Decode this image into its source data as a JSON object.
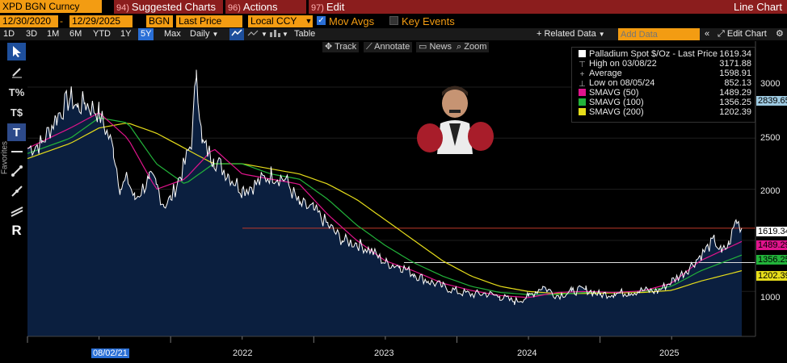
{
  "header": {
    "ticker": "XPD BGN Curncy",
    "menus": [
      {
        "num": "94)",
        "label": "Suggested Charts"
      },
      {
        "num": "96)",
        "label": "Actions"
      },
      {
        "num": "97)",
        "label": "Edit"
      }
    ],
    "chart_type_label": "Line Chart"
  },
  "controls": {
    "start_date": "12/30/2020",
    "end_date": "12/29/2025",
    "source": "BGN",
    "field": "Last Price",
    "currency": "Local CCY",
    "mov_avgs_label": "Mov Avgs",
    "mov_avgs_checked": true,
    "key_events_label": "Key Events",
    "key_events_checked": false
  },
  "periods": [
    "1D",
    "3D",
    "1M",
    "6M",
    "YTD",
    "1Y",
    "5Y",
    "Max"
  ],
  "active_period": "5Y",
  "toolbar": {
    "frequency": "Daily",
    "table_label": "Table",
    "related_data_label": "+ Related Data",
    "add_data_placeholder": "Add Data",
    "edit_chart_label": "Edit Chart"
  },
  "side_tools": [
    "cursor",
    "pen",
    "percent",
    "dollar",
    "text",
    "line",
    "trend",
    "ray",
    "channel",
    "R"
  ],
  "side_label": "Favorites",
  "chart_tools": {
    "track": "Track",
    "annotate": "Annotate",
    "news": "News",
    "zoom": "Zoom"
  },
  "legend": {
    "title": "Palladium Spot $/Oz - Last Price",
    "title_value": "1619.34",
    "high_label": "High on 03/08/22",
    "high_value": "3171.88",
    "avg_label": "Average",
    "avg_value": "1598.91",
    "low_label": "Low on 08/05/24",
    "low_value": "852.13",
    "sma50_label": "SMAVG (50)",
    "sma50_value": "1489.29",
    "sma100_label": "SMAVG (100)",
    "sma100_value": "1356.25",
    "sma200_label": "SMAVG (200)",
    "sma200_value": "1202.39"
  },
  "right_tags": {
    "high_line": "2839.65",
    "last": "1619.34",
    "sma50": "1489.29",
    "sma100": "1356.25",
    "sma200": "1202.39"
  },
  "axis": {
    "y_ticks": [
      "3000",
      "2500",
      "2000",
      "1500",
      "1000"
    ],
    "x_ticks": [
      "2022",
      "2023",
      "2024",
      "2025"
    ],
    "x_highlight": "08/02/21"
  },
  "colors": {
    "price": "#ffffff",
    "area": "#0b1f3f",
    "sma50": "#e0148c",
    "sma100": "#22b33a",
    "sma200": "#e6dd1a",
    "orange": "#f39c12",
    "title_bar": "#8b1d1d",
    "last_line": "#c0392b"
  },
  "chart_data": {
    "type": "line",
    "title": "Palladium Spot $/Oz - Last Price",
    "ylim": [
      560,
      3450
    ],
    "y_ticks": [
      1000,
      1500,
      2000,
      2500,
      3000
    ],
    "series": [
      {
        "name": "Palladium Spot $/Oz - Last Price",
        "x_years": [
          2021.0,
          2021.1,
          2021.2,
          2021.3,
          2021.35,
          2021.4,
          2021.5,
          2021.6,
          2021.65,
          2021.7,
          2021.75,
          2021.8,
          2021.85,
          2021.9,
          2021.95,
          2022.0,
          2022.1,
          2022.15,
          2022.18,
          2022.22,
          2022.3,
          2022.4,
          2022.5,
          2022.6,
          2022.7,
          2022.8,
          2022.9,
          2023.0,
          2023.1,
          2023.2,
          2023.3,
          2023.4,
          2023.5,
          2023.6,
          2023.7,
          2023.8,
          2023.9,
          2024.0,
          2024.1,
          2024.2,
          2024.3,
          2024.4,
          2024.5,
          2024.6,
          2024.7,
          2024.8,
          2024.9,
          2025.0,
          2025.1,
          2025.2,
          2025.3,
          2025.4,
          2025.5,
          2025.6,
          2025.7,
          2025.8,
          2025.85,
          2025.9,
          2025.95,
          2025.99
        ],
        "values": [
          2400,
          2450,
          2700,
          2900,
          2800,
          2850,
          2750,
          2400,
          2000,
          2100,
          1900,
          2000,
          2100,
          2050,
          1850,
          1900,
          2250,
          2500,
          3170,
          2450,
          2300,
          2150,
          2000,
          2050,
          2150,
          2100,
          1850,
          1800,
          1650,
          1500,
          1470,
          1400,
          1280,
          1250,
          1170,
          1100,
          1050,
          1000,
          970,
          980,
          950,
          900,
          950,
          1050,
          960,
          1000,
          1020,
          970,
          980,
          990,
          1010,
          1000,
          1100,
          1200,
          1350,
          1500,
          1380,
          1460,
          1700,
          1619.34
        ]
      },
      {
        "name": "SMAVG (50)",
        "x_years": [
          2021.0,
          2021.3,
          2021.5,
          2021.7,
          2021.9,
          2022.1,
          2022.3,
          2022.5,
          2022.7,
          2022.9,
          2023.1,
          2023.3,
          2023.5,
          2023.7,
          2023.9,
          2024.1,
          2024.3,
          2024.5,
          2024.7,
          2024.9,
          2025.1,
          2025.3,
          2025.5,
          2025.7,
          2025.99
        ],
        "values": [
          2400,
          2600,
          2750,
          2500,
          2000,
          2100,
          2400,
          2150,
          2100,
          2050,
          1750,
          1500,
          1300,
          1200,
          1080,
          1010,
          960,
          940,
          990,
          1000,
          990,
          1005,
          1080,
          1300,
          1489.29
        ]
      },
      {
        "name": "SMAVG (100)",
        "x_years": [
          2021.0,
          2021.3,
          2021.5,
          2021.7,
          2021.9,
          2022.1,
          2022.3,
          2022.5,
          2022.7,
          2022.9,
          2023.1,
          2023.3,
          2023.5,
          2023.7,
          2023.9,
          2024.1,
          2024.3,
          2024.5,
          2024.7,
          2024.9,
          2025.1,
          2025.3,
          2025.5,
          2025.7,
          2025.99
        ],
        "values": [
          2350,
          2500,
          2700,
          2650,
          2250,
          2050,
          2250,
          2250,
          2150,
          2100,
          1900,
          1650,
          1450,
          1280,
          1150,
          1050,
          990,
          970,
          970,
          990,
          990,
          1000,
          1050,
          1200,
          1356.25
        ]
      },
      {
        "name": "SMAVG (200)",
        "x_years": [
          2021.0,
          2021.3,
          2021.5,
          2021.7,
          2021.9,
          2022.1,
          2022.3,
          2022.5,
          2022.7,
          2022.9,
          2023.1,
          2023.3,
          2023.5,
          2023.7,
          2023.9,
          2024.1,
          2024.3,
          2024.5,
          2024.7,
          2024.9,
          2025.1,
          2025.3,
          2025.5,
          2025.7,
          2025.99
        ],
        "values": [
          2300,
          2450,
          2600,
          2650,
          2550,
          2400,
          2250,
          2250,
          2200,
          2150,
          2050,
          1900,
          1700,
          1500,
          1300,
          1150,
          1050,
          1000,
          980,
          980,
          985,
          990,
          1010,
          1100,
          1202.39
        ]
      }
    ]
  }
}
